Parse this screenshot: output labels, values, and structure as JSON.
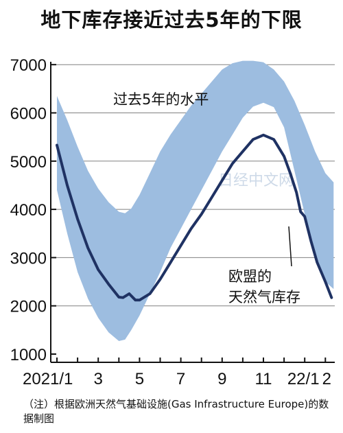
{
  "chart_data": {
    "type": "area",
    "title": "地下库存接近过去5年的下限",
    "ylim": [
      1000,
      7200
    ],
    "yticks": [
      1000,
      2000,
      3000,
      4000,
      5000,
      6000,
      7000
    ],
    "ytick_labels": [
      "1000",
      "2000",
      "3000",
      "4000",
      "5000",
      "6000",
      "7000"
    ],
    "x_tick_labels": [
      "2021/1",
      "3",
      "5",
      "7",
      "9",
      "11",
      "22/1",
      "2"
    ],
    "x_tick_positions": [
      0,
      2,
      4,
      6,
      8,
      10,
      12,
      13
    ],
    "grid": "horizontal",
    "band": {
      "name": "过去5年的水平",
      "x": [
        0,
        0.5,
        1,
        1.5,
        2,
        2.5,
        3,
        3.3,
        3.6,
        4,
        4.5,
        5,
        5.5,
        6,
        6.5,
        7,
        7.5,
        8,
        8.5,
        9,
        9.5,
        10,
        10.5,
        11,
        11.5,
        12,
        12.5,
        13,
        13.4
      ],
      "upper": [
        6350,
        5850,
        5300,
        4800,
        4430,
        4150,
        3950,
        3920,
        4020,
        4300,
        4750,
        5200,
        5550,
        5850,
        6150,
        6400,
        6650,
        6900,
        7030,
        7080,
        7080,
        7050,
        6900,
        6650,
        6250,
        5750,
        5200,
        4750,
        4560
      ],
      "lower": [
        4400,
        3500,
        2700,
        2150,
        1750,
        1450,
        1270,
        1300,
        1500,
        1800,
        2250,
        2700,
        3200,
        3600,
        4000,
        4400,
        4800,
        5200,
        5550,
        5900,
        6130,
        6210,
        6120,
        5700,
        4800,
        3900,
        3100,
        2500,
        2350
      ]
    },
    "series": [
      {
        "name": "欧盟的天然气库存",
        "x": [
          0,
          0.5,
          1,
          1.5,
          2,
          2.5,
          3,
          3.2,
          3.5,
          3.8,
          4,
          4.5,
          5,
          5.5,
          6,
          6.5,
          7,
          7.5,
          8,
          8.5,
          9,
          9.5,
          10,
          10.5,
          11,
          11.3,
          11.6,
          11.8,
          12,
          12.3,
          12.6,
          13,
          13.3
        ],
        "values": [
          5330,
          4500,
          3800,
          3200,
          2750,
          2450,
          2180,
          2170,
          2250,
          2120,
          2120,
          2250,
          2550,
          2900,
          3250,
          3600,
          3900,
          4250,
          4600,
          4950,
          5200,
          5450,
          5540,
          5450,
          5100,
          4750,
          4350,
          3950,
          3850,
          3350,
          2900,
          2500,
          2170
        ]
      }
    ],
    "annotations": [
      "过去5年的水平",
      "欧盟的",
      "天然气库存"
    ],
    "watermark": "日经中文网"
  },
  "note": "（注）根据欧洲天然气基础设施(Gas Infrastructure Europe)的数据制图",
  "colors": {
    "band": "#9dbde0",
    "line": "#1f3263",
    "grid": "#808080"
  }
}
